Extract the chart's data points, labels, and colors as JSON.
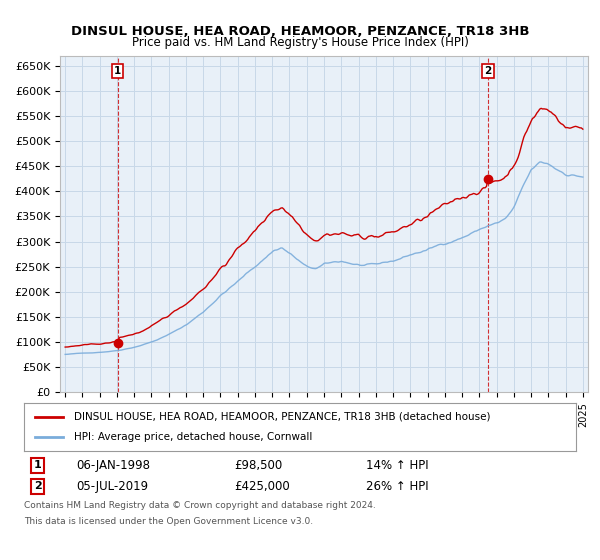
{
  "title": "DINSUL HOUSE, HEA ROAD, HEAMOOR, PENZANCE, TR18 3HB",
  "subtitle": "Price paid vs. HM Land Registry's House Price Index (HPI)",
  "ylim": [
    0,
    670000
  ],
  "yticks": [
    0,
    50000,
    100000,
    150000,
    200000,
    250000,
    300000,
    350000,
    400000,
    450000,
    500000,
    550000,
    600000,
    650000
  ],
  "ytick_labels": [
    "£0",
    "£50K",
    "£100K",
    "£150K",
    "£200K",
    "£250K",
    "£300K",
    "£350K",
    "£400K",
    "£450K",
    "£500K",
    "£550K",
    "£600K",
    "£650K"
  ],
  "sale1_date": 1998.04,
  "sale1_price": 98500,
  "sale1_label": "1",
  "sale2_date": 2019.5,
  "sale2_price": 425000,
  "sale2_label": "2",
  "sale1_date_str": "06-JAN-1998",
  "sale1_price_str": "£98,500",
  "sale1_pct_str": "14% ↑ HPI",
  "sale2_date_str": "05-JUL-2019",
  "sale2_price_str": "£425,000",
  "sale2_pct_str": "26% ↑ HPI",
  "legend_house": "DINSUL HOUSE, HEA ROAD, HEAMOOR, PENZANCE, TR18 3HB (detached house)",
  "legend_hpi": "HPI: Average price, detached house, Cornwall",
  "footer_line1": "Contains HM Land Registry data © Crown copyright and database right 2024.",
  "footer_line2": "This data is licensed under the Open Government Licence v3.0.",
  "house_color": "#cc0000",
  "hpi_color": "#7aacdb",
  "chart_bg": "#e8f0f8",
  "fig_bg": "#ffffff",
  "grid_color": "#c8d8e8",
  "vline_color": "#cc0000",
  "xlim_left": 1994.7,
  "xlim_right": 2025.3
}
